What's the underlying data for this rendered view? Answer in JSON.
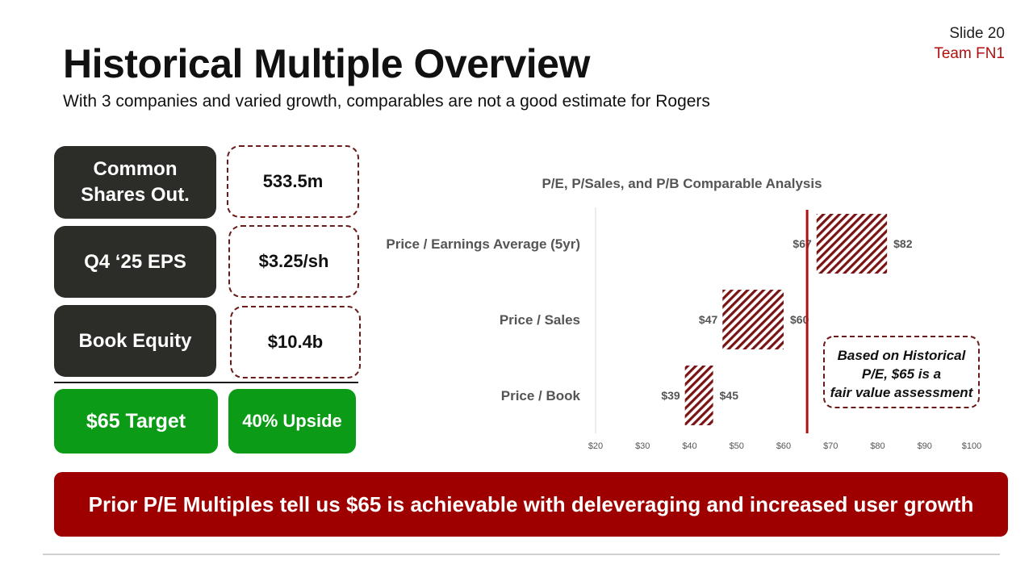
{
  "header": {
    "slide_number": "Slide 20",
    "team": "Team FN1",
    "title": "Historical Multiple Overview",
    "subtitle": "With 3 companies and varied growth, comparables are not a good estimate for Rogers"
  },
  "metrics": [
    {
      "label": "Common Shares Out.",
      "value": "533.5m"
    },
    {
      "label": "Q4 ‘25 EPS",
      "value": "$3.25/sh"
    },
    {
      "label": "Book Equity",
      "value": "$10.4b"
    }
  ],
  "target": {
    "label": "$65 Target",
    "upside": "40% Upside"
  },
  "conclusion": "Prior P/E Multiples tell us $65 is achievable with deleveraging and increased user growth",
  "colors": {
    "bar_hatch": "#7a1414",
    "target_line": "#b01010",
    "green": "#0c9b16",
    "banner": "#9e0000",
    "dark": "#2c2c28"
  },
  "chart_data": {
    "type": "bar",
    "orientation": "horizontal-range",
    "title": "P/E, P/Sales, and P/B Comparable Analysis",
    "categories": [
      "Price / Earnings Average (5yr)",
      "Price / Sales",
      "Price / Book"
    ],
    "ranges": [
      {
        "low": 67,
        "high": 82,
        "low_label": "$67",
        "high_label": "$82"
      },
      {
        "low": 47,
        "high": 60,
        "low_label": "$47",
        "high_label": "$60"
      },
      {
        "low": 39,
        "high": 45,
        "low_label": "$39",
        "high_label": "$45"
      }
    ],
    "xlim": [
      20,
      100
    ],
    "xticks": [
      20,
      30,
      40,
      50,
      60,
      70,
      80,
      90,
      100
    ],
    "xtick_labels": [
      "$20",
      "$30",
      "$40",
      "$50",
      "$60",
      "$70",
      "$80",
      "$90",
      "$100"
    ],
    "reference_line": 65,
    "annotation": "Based on Historical P/E, $65 is a fair value assessment",
    "grid": false
  }
}
